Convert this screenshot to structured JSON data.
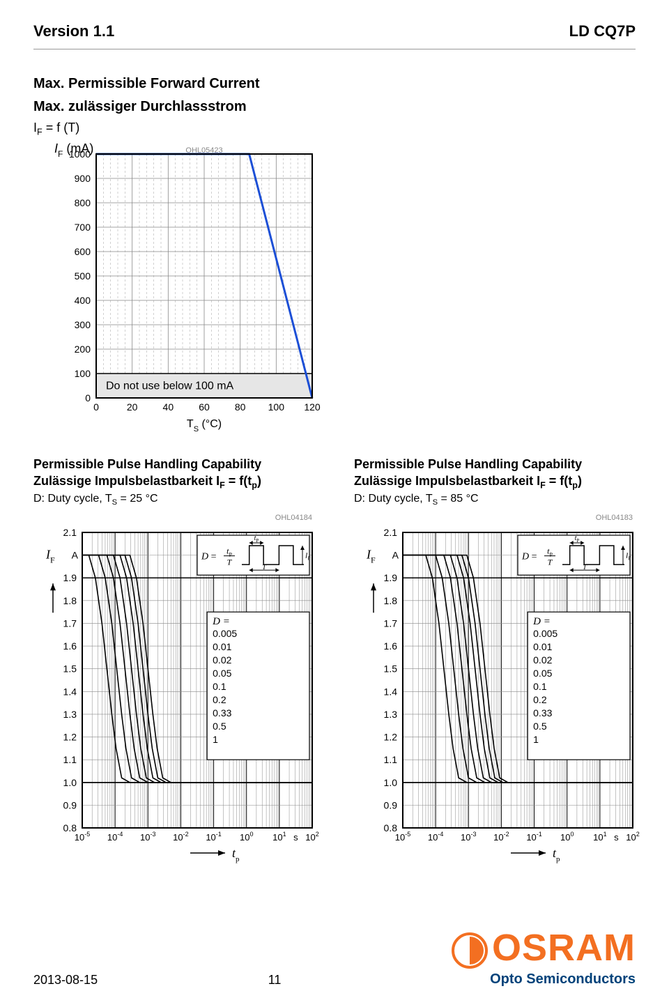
{
  "header": {
    "left": "Version 1.1",
    "right": "LD CQ7P"
  },
  "chart1": {
    "title1": "Max. Permissible Forward Current",
    "title2": "Max. zulässiger Durchlassstrom",
    "eq": "I",
    "eq_sub": "F",
    "eq_rest": " = f (T)",
    "ylabel": "I",
    "ylabel_sub": "F",
    "yunit": " (mA)",
    "code": "OHL05423",
    "xlabel": "T",
    "xlabel_sub": "S",
    "xunit": " (°C)",
    "note": "Do not use below 100 mA",
    "yticks": [
      0,
      100,
      200,
      300,
      400,
      500,
      600,
      700,
      800,
      900,
      1000
    ],
    "xticks": [
      0,
      20,
      40,
      60,
      80,
      100,
      120
    ],
    "line": [
      [
        0,
        1000
      ],
      [
        85,
        1000
      ],
      [
        120,
        0
      ]
    ],
    "line_color": "#1c4fd6",
    "line_width": 3,
    "grid_color": "#888888",
    "bg": "#ffffff",
    "minor_x": [
      4,
      8,
      12,
      16,
      24,
      28,
      32,
      36,
      44,
      48,
      52,
      56,
      64,
      68,
      72,
      76,
      84,
      88,
      92,
      96,
      104,
      108,
      112,
      116
    ]
  },
  "chart2": {
    "title1": "Permissible Pulse Handling Capability",
    "title2": "Zulässige Impulsbelastbarkeit I",
    "title2_sub": "F",
    "title2_rest": " = f(t",
    "title2_sub2": "p",
    "title2_rest2": ")",
    "sub": "D: Duty cycle, T",
    "sub_sub": "S",
    "sub_rest": " = 25 °C",
    "code": "OHL04184",
    "ylabel": "I",
    "ylabel_sub": "F",
    "yunit": "A",
    "ymax_label": "2.1",
    "yticks": [
      "0.8",
      "0.9",
      "1.0",
      "1.1",
      "1.2",
      "1.3",
      "1.4",
      "1.5",
      "1.6",
      "1.7",
      "1.8",
      "1.9"
    ],
    "xticks": [
      "10",
      "10",
      "10",
      "10",
      "10",
      "10",
      "10",
      "10"
    ],
    "xexp": [
      "-5",
      "-4",
      "-3",
      "-2",
      "-1",
      "0",
      "1",
      "2"
    ],
    "xunit": "s",
    "xlabel": "t",
    "xlabel_sub": "p",
    "d_title": "D =",
    "d_values": [
      "0.005",
      "0.01",
      "0.02",
      "0.05",
      "0.1",
      "0.2",
      "0.33",
      "0.5",
      "1"
    ],
    "inset_eq": "D =",
    "inset_tp": "t",
    "inset_tp_sub": "P",
    "inset_T": "T",
    "inset_if": "I",
    "inset_if_sub": "F",
    "curves_color": "#000000",
    "grid_color": "#888888",
    "curves": [
      [
        [
          -5,
          2.0
        ],
        [
          -3.55,
          2.0
        ],
        [
          -3.35,
          1.9
        ],
        [
          -3.15,
          1.7
        ],
        [
          -3.0,
          1.5
        ],
        [
          -2.85,
          1.3
        ],
        [
          -2.72,
          1.15
        ],
        [
          -2.55,
          1.02
        ],
        [
          -2.3,
          1.0
        ],
        [
          2,
          1.0
        ]
      ],
      [
        [
          -5,
          2.0
        ],
        [
          -3.7,
          2.0
        ],
        [
          -3.5,
          1.9
        ],
        [
          -3.3,
          1.7
        ],
        [
          -3.15,
          1.5
        ],
        [
          -3.0,
          1.3
        ],
        [
          -2.87,
          1.15
        ],
        [
          -2.7,
          1.02
        ],
        [
          -2.45,
          1.0
        ],
        [
          2,
          1.0
        ]
      ],
      [
        [
          -5,
          2.0
        ],
        [
          -3.85,
          2.0
        ],
        [
          -3.65,
          1.9
        ],
        [
          -3.45,
          1.7
        ],
        [
          -3.3,
          1.5
        ],
        [
          -3.15,
          1.3
        ],
        [
          -3.02,
          1.15
        ],
        [
          -2.85,
          1.02
        ],
        [
          -2.6,
          1.0
        ],
        [
          2,
          1.0
        ]
      ],
      [
        [
          -5,
          2.0
        ],
        [
          -4.05,
          2.0
        ],
        [
          -3.85,
          1.9
        ],
        [
          -3.65,
          1.7
        ],
        [
          -3.5,
          1.5
        ],
        [
          -3.35,
          1.3
        ],
        [
          -3.22,
          1.15
        ],
        [
          -3.05,
          1.02
        ],
        [
          -2.8,
          1.0
        ],
        [
          2,
          1.0
        ]
      ],
      [
        [
          -5,
          2.0
        ],
        [
          -4.25,
          2.0
        ],
        [
          -4.05,
          1.9
        ],
        [
          -3.85,
          1.7
        ],
        [
          -3.7,
          1.5
        ],
        [
          -3.55,
          1.3
        ],
        [
          -3.42,
          1.15
        ],
        [
          -3.25,
          1.02
        ],
        [
          -3.0,
          1.0
        ],
        [
          2,
          1.0
        ]
      ],
      [
        [
          -5,
          2.0
        ],
        [
          -4.5,
          2.0
        ],
        [
          -4.3,
          1.9
        ],
        [
          -4.1,
          1.7
        ],
        [
          -3.95,
          1.5
        ],
        [
          -3.8,
          1.3
        ],
        [
          -3.67,
          1.15
        ],
        [
          -3.5,
          1.02
        ],
        [
          -3.25,
          1.0
        ],
        [
          2,
          1.0
        ]
      ],
      [
        [
          -5,
          2.0
        ],
        [
          -4.8,
          2.0
        ],
        [
          -4.6,
          1.9
        ],
        [
          -4.4,
          1.7
        ],
        [
          -4.25,
          1.5
        ],
        [
          -4.1,
          1.3
        ],
        [
          -3.97,
          1.15
        ],
        [
          -3.8,
          1.02
        ],
        [
          -3.55,
          1.0
        ],
        [
          2,
          1.0
        ]
      ],
      [
        [
          -5,
          1.0
        ],
        [
          2,
          1.0
        ]
      ],
      [
        [
          -5,
          1.0
        ],
        [
          2,
          1.0
        ]
      ]
    ]
  },
  "chart3": {
    "title1": "Permissible Pulse Handling Capability",
    "title2": "Zulässige Impulsbelastbarkeit I",
    "title2_sub": "F",
    "title2_rest": " = f(t",
    "title2_sub2": "p",
    "title2_rest2": ")",
    "sub": "D: Duty cycle, T",
    "sub_sub": "S",
    "sub_rest": " = 85 °C",
    "code": "OHL04183",
    "ylabel": "I",
    "ylabel_sub": "F",
    "yunit": "A",
    "ymax_label": "2.1",
    "yticks": [
      "0.8",
      "0.9",
      "1.0",
      "1.1",
      "1.2",
      "1.3",
      "1.4",
      "1.5",
      "1.6",
      "1.7",
      "1.8",
      "1.9"
    ],
    "xticks": [
      "10",
      "10",
      "10",
      "10",
      "10",
      "10",
      "10",
      "10"
    ],
    "xexp": [
      "-5",
      "-4",
      "-3",
      "-2",
      "-1",
      "0",
      "1",
      "2"
    ],
    "xunit": "s",
    "xlabel": "t",
    "xlabel_sub": "p",
    "d_title": "D =",
    "d_values": [
      "0.005",
      "0.01",
      "0.02",
      "0.05",
      "0.1",
      "0.2",
      "0.33",
      "0.5",
      "1"
    ],
    "inset_eq": "D =",
    "inset_tp": "t",
    "inset_tp_sub": "P",
    "inset_T": "T",
    "inset_if": "I",
    "inset_if_sub": "F",
    "curves_color": "#000000",
    "grid_color": "#888888",
    "curves": [
      [
        [
          -5,
          2.0
        ],
        [
          -3.05,
          2.0
        ],
        [
          -2.85,
          1.9
        ],
        [
          -2.65,
          1.7
        ],
        [
          -2.5,
          1.5
        ],
        [
          -2.35,
          1.3
        ],
        [
          -2.22,
          1.15
        ],
        [
          -2.05,
          1.02
        ],
        [
          -1.8,
          1.0
        ],
        [
          2,
          1.0
        ]
      ],
      [
        [
          -5,
          2.0
        ],
        [
          -3.2,
          2.0
        ],
        [
          -3.0,
          1.9
        ],
        [
          -2.8,
          1.7
        ],
        [
          -2.65,
          1.5
        ],
        [
          -2.5,
          1.3
        ],
        [
          -2.37,
          1.15
        ],
        [
          -2.2,
          1.02
        ],
        [
          -1.95,
          1.0
        ],
        [
          2,
          1.0
        ]
      ],
      [
        [
          -5,
          2.0
        ],
        [
          -3.35,
          2.0
        ],
        [
          -3.15,
          1.9
        ],
        [
          -2.95,
          1.7
        ],
        [
          -2.8,
          1.5
        ],
        [
          -2.65,
          1.3
        ],
        [
          -2.52,
          1.15
        ],
        [
          -2.35,
          1.02
        ],
        [
          -2.1,
          1.0
        ],
        [
          2,
          1.0
        ]
      ],
      [
        [
          -5,
          2.0
        ],
        [
          -3.55,
          2.0
        ],
        [
          -3.35,
          1.9
        ],
        [
          -3.15,
          1.7
        ],
        [
          -3.0,
          1.5
        ],
        [
          -2.85,
          1.3
        ],
        [
          -2.72,
          1.15
        ],
        [
          -2.55,
          1.02
        ],
        [
          -2.3,
          1.0
        ],
        [
          2,
          1.0
        ]
      ],
      [
        [
          -5,
          2.0
        ],
        [
          -3.75,
          2.0
        ],
        [
          -3.55,
          1.9
        ],
        [
          -3.35,
          1.7
        ],
        [
          -3.2,
          1.5
        ],
        [
          -3.05,
          1.3
        ],
        [
          -2.92,
          1.15
        ],
        [
          -2.75,
          1.02
        ],
        [
          -2.5,
          1.0
        ],
        [
          2,
          1.0
        ]
      ],
      [
        [
          -5,
          2.0
        ],
        [
          -4.0,
          2.0
        ],
        [
          -3.8,
          1.9
        ],
        [
          -3.6,
          1.7
        ],
        [
          -3.45,
          1.5
        ],
        [
          -3.3,
          1.3
        ],
        [
          -3.17,
          1.15
        ],
        [
          -3.0,
          1.02
        ],
        [
          -2.75,
          1.0
        ],
        [
          2,
          1.0
        ]
      ],
      [
        [
          -5,
          2.0
        ],
        [
          -4.3,
          2.0
        ],
        [
          -4.1,
          1.9
        ],
        [
          -3.9,
          1.7
        ],
        [
          -3.75,
          1.5
        ],
        [
          -3.6,
          1.3
        ],
        [
          -3.47,
          1.15
        ],
        [
          -3.3,
          1.02
        ],
        [
          -3.05,
          1.0
        ],
        [
          2,
          1.0
        ]
      ],
      [
        [
          -5,
          1.0
        ],
        [
          2,
          1.0
        ]
      ],
      [
        [
          -5,
          1.0
        ],
        [
          2,
          1.0
        ]
      ]
    ]
  },
  "footer": {
    "date": "2013-08-15",
    "page": "11",
    "brand": "OSRAM",
    "sub": "Opto Semiconductors"
  }
}
